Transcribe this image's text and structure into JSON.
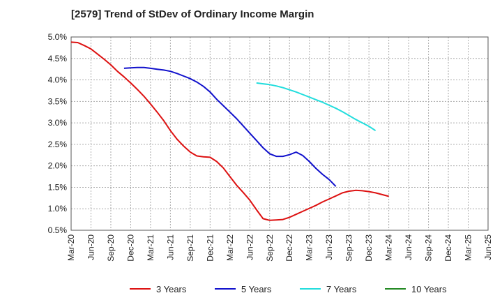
{
  "chart_data": {
    "type": "line",
    "title": "[2579]  Trend of StDev of Ordinary Income Margin",
    "xlabel": "",
    "ylabel": "",
    "x_tick_labels": [
      "Mar-20",
      "Jun-20",
      "Sep-20",
      "Dec-20",
      "Mar-21",
      "Jun-21",
      "Sep-21",
      "Dec-21",
      "Mar-22",
      "Jun-22",
      "Sep-22",
      "Dec-22",
      "Mar-23",
      "Jun-23",
      "Sep-23",
      "Dec-23",
      "Mar-24",
      "Jun-24",
      "Sep-24",
      "Dec-24",
      "Mar-25",
      "Jun-25"
    ],
    "y_tick_labels": [
      "0.5%",
      "1.0%",
      "1.5%",
      "2.0%",
      "2.5%",
      "3.0%",
      "3.5%",
      "4.0%",
      "4.5%",
      "5.0%"
    ],
    "y_ticks": [
      0.5,
      1.0,
      1.5,
      2.0,
      2.5,
      3.0,
      3.5,
      4.0,
      4.5,
      5.0
    ],
    "ylim": [
      0.5,
      5.0
    ],
    "grid": true,
    "legend_position": "bottom",
    "series": [
      {
        "name": "3 Years",
        "color": "#dd1111",
        "start_index": 0,
        "values": [
          4.88,
          4.87,
          4.8,
          4.72,
          4.6,
          4.48,
          4.35,
          4.2,
          4.07,
          3.93,
          3.78,
          3.62,
          3.44,
          3.25,
          3.05,
          2.82,
          2.62,
          2.46,
          2.32,
          2.23,
          2.21,
          2.2,
          2.1,
          1.95,
          1.75,
          1.55,
          1.38,
          1.2,
          0.98,
          0.77,
          0.73,
          0.74,
          0.75,
          0.8,
          0.87,
          0.94,
          1.01,
          1.08,
          1.16,
          1.23,
          1.3,
          1.37,
          1.41,
          1.43,
          1.42,
          1.4,
          1.37,
          1.33,
          1.29
        ]
      },
      {
        "name": "5 Years",
        "color": "#1111cc",
        "start_index": 8,
        "values": [
          4.27,
          4.28,
          4.29,
          4.29,
          4.27,
          4.25,
          4.23,
          4.2,
          4.15,
          4.09,
          4.03,
          3.95,
          3.85,
          3.72,
          3.55,
          3.4,
          3.25,
          3.1,
          2.93,
          2.76,
          2.59,
          2.42,
          2.28,
          2.22,
          2.22,
          2.26,
          2.32,
          2.24,
          2.1,
          1.94,
          1.8,
          1.68,
          1.52
        ]
      },
      {
        "name": "7 Years",
        "color": "#22dddd",
        "start_index": 28,
        "values": [
          3.93,
          3.91,
          3.89,
          3.86,
          3.82,
          3.77,
          3.72,
          3.66,
          3.6,
          3.54,
          3.48,
          3.41,
          3.34,
          3.26,
          3.17,
          3.08,
          3.0,
          2.92,
          2.82
        ]
      },
      {
        "name": "10 Years",
        "color": "#228822",
        "start_index": 0,
        "values": []
      }
    ]
  }
}
